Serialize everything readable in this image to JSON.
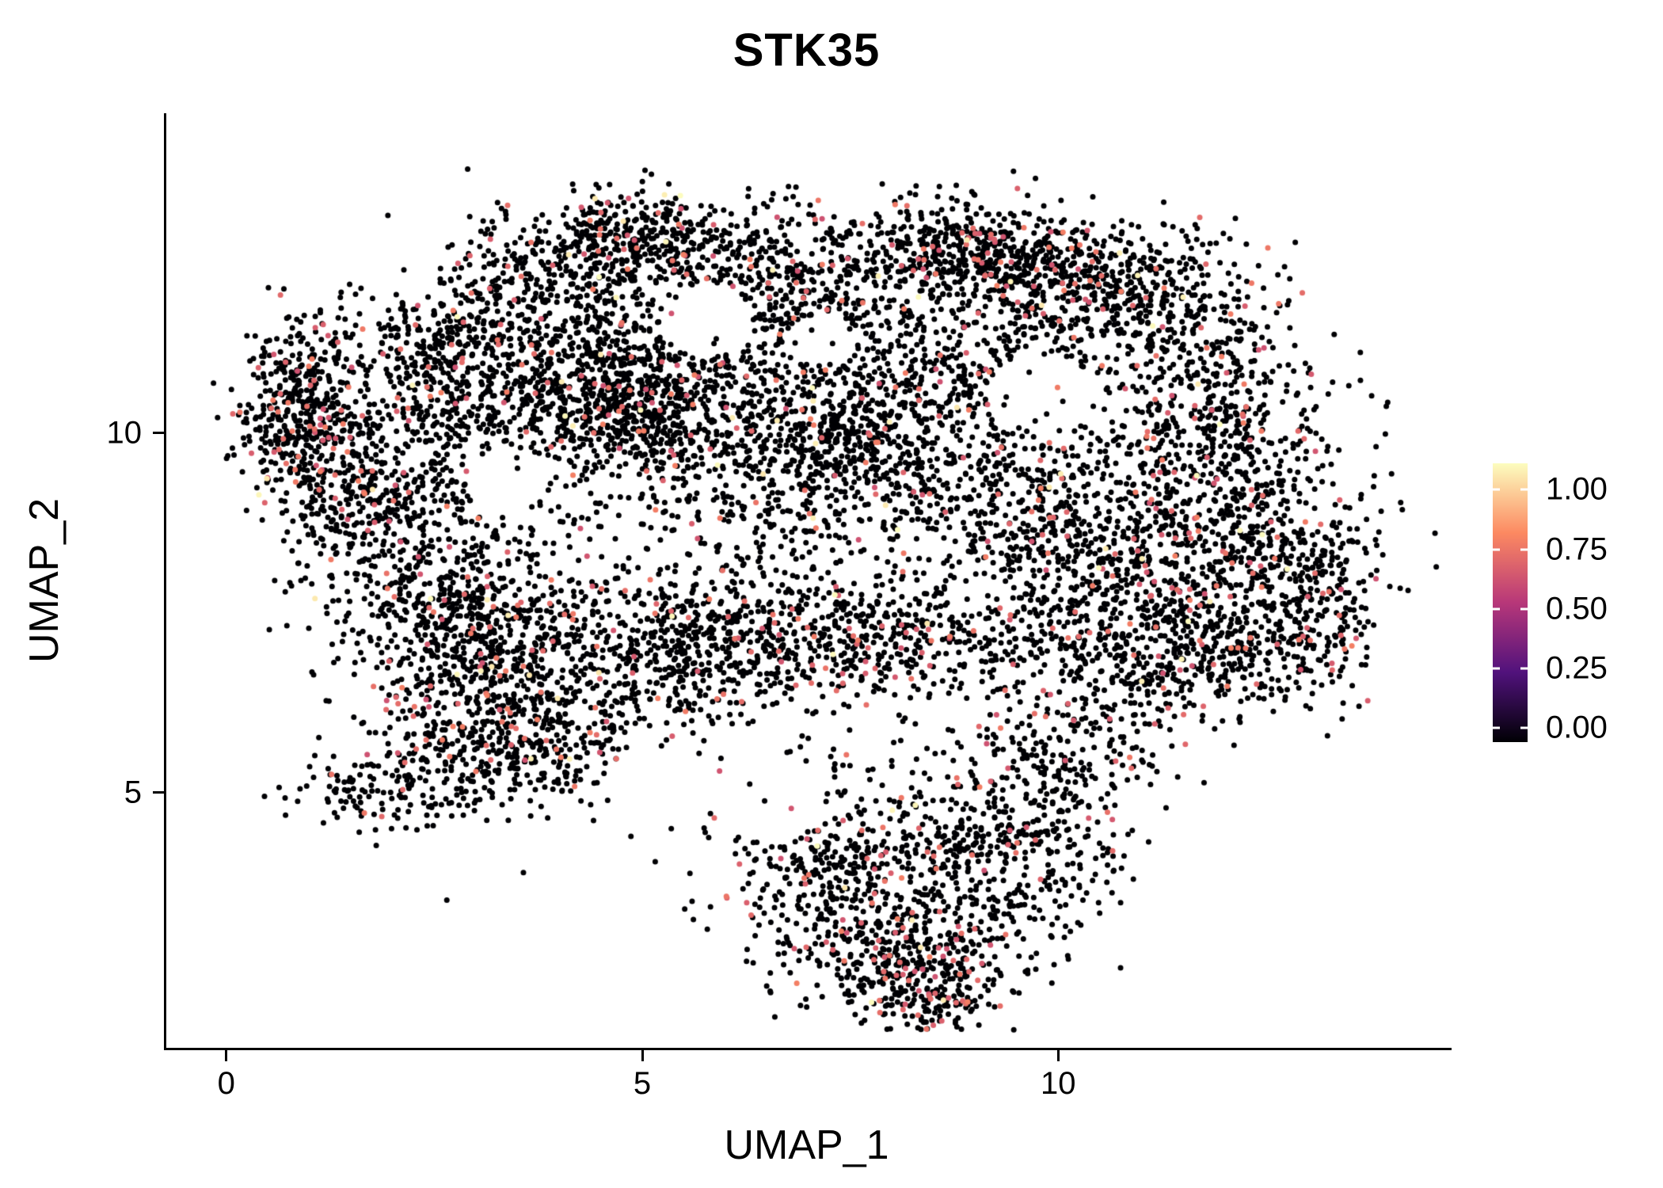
{
  "chart_data": {
    "type": "scatter",
    "title": "STK35",
    "xlabel": "UMAP_1",
    "ylabel": "UMAP_2",
    "x_ticks": [
      0,
      5,
      10
    ],
    "x_tick_labels": [
      "0",
      "5",
      "10"
    ],
    "y_ticks": [
      10,
      5
    ],
    "y_tick_labels": [
      "10",
      "5"
    ],
    "xlim": [
      -0.75,
      14.7
    ],
    "ylim": [
      1.45,
      14.45
    ],
    "grid": false,
    "background": "#ffffff",
    "point_radius": 3.5,
    "seed": 42,
    "yellow_frac": 0.006,
    "expressed_value_range": [
      0.58,
      0.72
    ],
    "high_value_range": [
      0.95,
      1.0
    ],
    "legend": {
      "position": "right",
      "ticks": [
        "1.00",
        "0.75",
        "0.50",
        "0.25",
        "0.00"
      ],
      "tick_values": [
        1.0,
        0.75,
        0.5,
        0.25,
        0.0
      ],
      "palette_stops": [
        {
          "v": 0.0,
          "c": "#000004"
        },
        {
          "v": 0.25,
          "c": "#51127c"
        },
        {
          "v": 0.5,
          "c": "#b73779"
        },
        {
          "v": 0.75,
          "c": "#fc8961"
        },
        {
          "v": 1.0,
          "c": "#fcfdbf"
        }
      ]
    },
    "holes": [
      {
        "x": 3.35,
        "y": 9.35,
        "rx": 0.5,
        "ry": 0.45
      },
      {
        "x": 5.75,
        "y": 11.55,
        "rx": 0.55,
        "ry": 0.5
      },
      {
        "x": 9.75,
        "y": 10.6,
        "rx": 0.6,
        "ry": 0.55
      },
      {
        "x": 6.55,
        "y": 4.9,
        "rx": 0.7,
        "ry": 0.6
      },
      {
        "x": 5.15,
        "y": 5.15,
        "rx": 0.55,
        "ry": 0.45
      },
      {
        "x": 7.15,
        "y": 11.3,
        "rx": 0.45,
        "ry": 0.35
      }
    ],
    "clusters": [
      {
        "cx": 0.85,
        "cy": 10.35,
        "sx": 0.38,
        "sy": 0.6,
        "n": 420,
        "red_frac": 0.13
      },
      {
        "cx": 1.35,
        "cy": 9.1,
        "sx": 0.5,
        "sy": 0.55,
        "n": 220,
        "red_frac": 0.07
      },
      {
        "cx": 2.15,
        "cy": 9.8,
        "sx": 0.55,
        "sy": 0.75,
        "n": 280,
        "red_frac": 0.05
      },
      {
        "cx": 2.6,
        "cy": 11.2,
        "sx": 0.6,
        "sy": 0.45,
        "n": 260,
        "red_frac": 0.07
      },
      {
        "cx": 2.7,
        "cy": 8.2,
        "sx": 0.8,
        "sy": 0.85,
        "n": 340,
        "red_frac": 0.05
      },
      {
        "cx": 4.0,
        "cy": 10.5,
        "sx": 0.8,
        "sy": 0.55,
        "n": 520,
        "red_frac": 0.06
      },
      {
        "cx": 5.1,
        "cy": 10.45,
        "sx": 0.6,
        "sy": 0.5,
        "n": 460,
        "red_frac": 0.07
      },
      {
        "cx": 4.0,
        "cy": 11.8,
        "sx": 0.9,
        "sy": 0.5,
        "n": 260,
        "red_frac": 0.05
      },
      {
        "cx": 4.9,
        "cy": 12.7,
        "sx": 0.5,
        "sy": 0.35,
        "n": 300,
        "red_frac": 0.07
      },
      {
        "cx": 6.2,
        "cy": 12.35,
        "sx": 0.7,
        "sy": 0.45,
        "n": 250,
        "red_frac": 0.05
      },
      {
        "cx": 7.3,
        "cy": 12.0,
        "sx": 0.6,
        "sy": 0.55,
        "n": 240,
        "red_frac": 0.05
      },
      {
        "cx": 8.7,
        "cy": 12.6,
        "sx": 0.6,
        "sy": 0.35,
        "n": 330,
        "red_frac": 0.1
      },
      {
        "cx": 9.6,
        "cy": 12.35,
        "sx": 0.5,
        "sy": 0.4,
        "n": 260,
        "red_frac": 0.1
      },
      {
        "cx": 10.7,
        "cy": 12.0,
        "sx": 0.65,
        "sy": 0.45,
        "n": 330,
        "red_frac": 0.09
      },
      {
        "cx": 11.6,
        "cy": 11.2,
        "sx": 0.6,
        "sy": 0.65,
        "n": 230,
        "red_frac": 0.06
      },
      {
        "cx": 6.6,
        "cy": 10.9,
        "sx": 0.9,
        "sy": 0.7,
        "n": 300,
        "red_frac": 0.04
      },
      {
        "cx": 7.4,
        "cy": 10.1,
        "sx": 0.5,
        "sy": 0.5,
        "n": 280,
        "red_frac": 0.06
      },
      {
        "cx": 6.3,
        "cy": 9.2,
        "sx": 1.2,
        "sy": 0.9,
        "n": 520,
        "red_frac": 0.04
      },
      {
        "cx": 8.6,
        "cy": 9.6,
        "sx": 0.9,
        "sy": 0.8,
        "n": 430,
        "red_frac": 0.05
      },
      {
        "cx": 10.6,
        "cy": 8.4,
        "sx": 1.0,
        "sy": 0.9,
        "n": 850,
        "red_frac": 0.07
      },
      {
        "cx": 12.3,
        "cy": 8.6,
        "sx": 0.7,
        "sy": 0.9,
        "n": 430,
        "red_frac": 0.08
      },
      {
        "cx": 13.1,
        "cy": 7.7,
        "sx": 0.4,
        "sy": 0.7,
        "n": 220,
        "red_frac": 0.08
      },
      {
        "cx": 11.6,
        "cy": 6.9,
        "sx": 0.8,
        "sy": 0.5,
        "n": 380,
        "red_frac": 0.07
      },
      {
        "cx": 7.6,
        "cy": 7.1,
        "sx": 1.4,
        "sy": 0.45,
        "n": 620,
        "red_frac": 0.07
      },
      {
        "cx": 5.3,
        "cy": 6.9,
        "sx": 0.8,
        "sy": 0.6,
        "n": 430,
        "red_frac": 0.06
      },
      {
        "cx": 3.3,
        "cy": 6.4,
        "sx": 0.75,
        "sy": 0.75,
        "n": 620,
        "red_frac": 0.09
      },
      {
        "cx": 2.7,
        "cy": 7.5,
        "sx": 0.8,
        "sy": 0.6,
        "n": 280,
        "red_frac": 0.05
      },
      {
        "cx": 1.95,
        "cy": 5.1,
        "sx": 0.6,
        "sy": 0.3,
        "n": 130,
        "red_frac": 0.04
      },
      {
        "cx": 3.6,
        "cy": 5.5,
        "sx": 0.8,
        "sy": 0.35,
        "n": 180,
        "red_frac": 0.05
      },
      {
        "cx": 8.1,
        "cy": 3.8,
        "sx": 1.0,
        "sy": 0.8,
        "n": 520,
        "red_frac": 0.08
      },
      {
        "cx": 8.2,
        "cy": 2.7,
        "sx": 0.7,
        "sy": 0.4,
        "n": 300,
        "red_frac": 0.13
      },
      {
        "cx": 7.0,
        "cy": 4.3,
        "sx": 0.5,
        "sy": 0.6,
        "n": 200,
        "red_frac": 0.08
      },
      {
        "cx": 9.6,
        "cy": 4.3,
        "sx": 0.6,
        "sy": 0.6,
        "n": 240,
        "red_frac": 0.06
      },
      {
        "cx": 9.9,
        "cy": 5.6,
        "sx": 0.7,
        "sy": 0.5,
        "n": 200,
        "red_frac": 0.05
      },
      {
        "cx": 8.5,
        "cy": 2.1,
        "sx": 0.4,
        "sy": 0.3,
        "n": 130,
        "red_frac": 0.12
      },
      {
        "cx": 9.0,
        "cy": 11.2,
        "sx": 0.8,
        "sy": 0.5,
        "n": 260,
        "red_frac": 0.06
      },
      {
        "cx": 11.9,
        "cy": 10.2,
        "sx": 0.6,
        "sy": 0.6,
        "n": 220,
        "red_frac": 0.06
      },
      {
        "cx": 3.6,
        "cy": 12.4,
        "sx": 0.5,
        "sy": 0.4,
        "n": 120,
        "red_frac": 0.05
      }
    ]
  }
}
